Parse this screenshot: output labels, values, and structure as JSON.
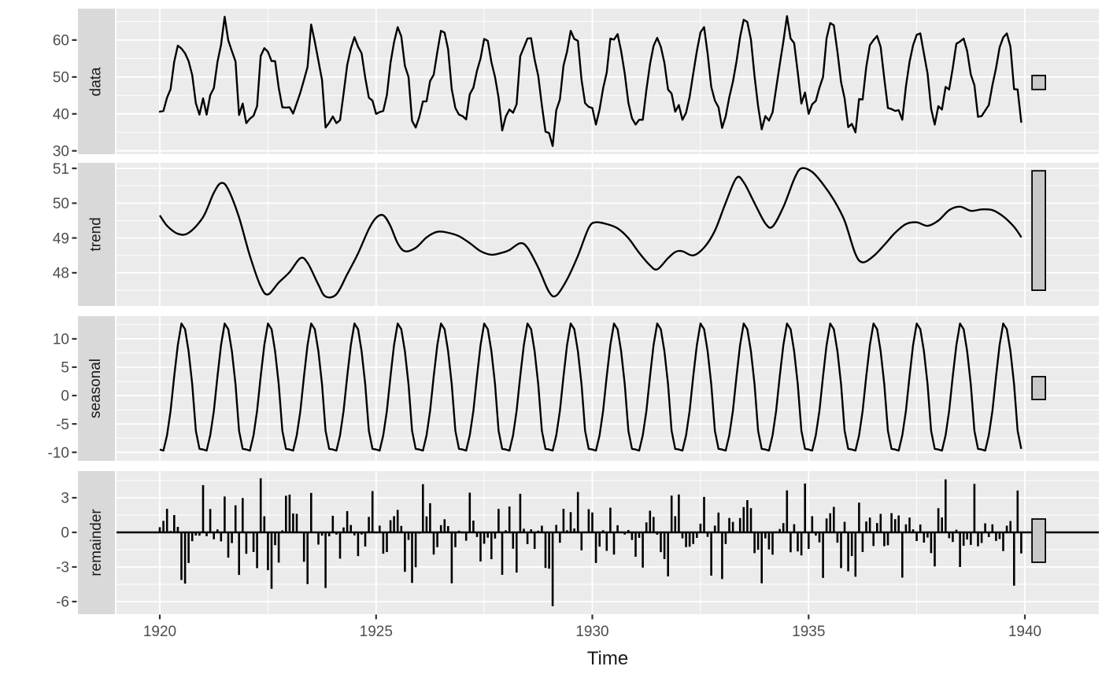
{
  "chart_data": {
    "type": "line",
    "description_visible": "Four-panel time-series decomposition plot",
    "xlabel": "Time",
    "x_axis": {
      "ticks": [
        1920,
        1925,
        1930,
        1935,
        1940
      ],
      "tick_labels": [
        "1920",
        "1925",
        "1930",
        "1935",
        "1940"
      ],
      "minor_ticks": [
        1922.5,
        1927.5,
        1932.5,
        1937.5
      ],
      "range_years": [
        1919.0,
        1941.72
      ]
    },
    "start_year": 1920,
    "frequency_per_year": 12,
    "panels": [
      {
        "label": "data",
        "yticks": [
          30,
          40,
          50,
          60
        ],
        "minor_yticks": [
          35,
          45,
          55,
          65
        ],
        "ylim": [
          29.1,
          68.5
        ]
      },
      {
        "label": "trend",
        "yticks": [
          48,
          49,
          50,
          51
        ],
        "minor_yticks": [
          47.5,
          48.5,
          49.5,
          50.5
        ],
        "ylim": [
          47.05,
          51.16
        ]
      },
      {
        "label": "seasonal",
        "yticks": [
          -10,
          -5,
          0,
          5,
          10
        ],
        "minor_yticks": [
          -7.5,
          -2.5,
          2.5,
          7.5,
          12.5
        ],
        "ylim": [
          -11.5,
          14.0
        ]
      },
      {
        "label": "remainder",
        "yticks": [
          -6,
          -3,
          0,
          3
        ],
        "minor_yticks": [
          -4.5,
          -1.5,
          1.5,
          4.5
        ],
        "ylim": [
          -7.09,
          5.32
        ]
      }
    ],
    "series": {
      "data_monthly": [
        40.6,
        40.8,
        44.4,
        46.7,
        54.1,
        58.5,
        57.7,
        56.4,
        54.3,
        50.5,
        42.9,
        39.8,
        44.2,
        39.8,
        45.1,
        47.0,
        54.1,
        58.7,
        66.3,
        59.9,
        57.0,
        54.2,
        39.7,
        42.8,
        37.5,
        38.7,
        39.5,
        42.1,
        55.7,
        57.8,
        56.8,
        54.3,
        54.3,
        47.1,
        41.8,
        41.7,
        41.8,
        40.1,
        42.9,
        45.8,
        49.2,
        52.7,
        64.2,
        59.6,
        54.4,
        49.2,
        36.3,
        37.6,
        39.3,
        37.5,
        38.3,
        45.5,
        53.2,
        57.7,
        60.8,
        58.2,
        56.4,
        49.8,
        44.4,
        43.6,
        40.0,
        40.5,
        40.8,
        45.1,
        53.8,
        59.4,
        63.5,
        61.0,
        53.0,
        50.0,
        38.1,
        36.3,
        39.2,
        43.4,
        43.4,
        48.9,
        50.6,
        56.8,
        62.5,
        62.0,
        57.5,
        46.7,
        41.6,
        39.8,
        39.4,
        38.5,
        45.3,
        47.1,
        51.7,
        55.0,
        60.3,
        59.8,
        54.0,
        50.0,
        44.4,
        35.5,
        39.3,
        41.2,
        40.3,
        42.6,
        55.6,
        58.0,
        60.4,
        60.5,
        54.7,
        50.3,
        42.3,
        35.2,
        34.8,
        31.3,
        41.0,
        43.9,
        53.1,
        56.9,
        62.5,
        60.3,
        59.8,
        49.2,
        42.9,
        41.9,
        41.6,
        37.1,
        41.2,
        46.9,
        51.2,
        60.4,
        60.1,
        61.6,
        57.0,
        50.9,
        43.0,
        38.8,
        37.1,
        38.4,
        38.4,
        46.5,
        53.5,
        58.4,
        60.6,
        58.2,
        53.8,
        46.6,
        45.5,
        40.6,
        42.4,
        38.4,
        40.3,
        44.6,
        50.9,
        57.0,
        62.1,
        63.5,
        56.3,
        47.3,
        43.6,
        41.8,
        36.2,
        39.3,
        44.5,
        48.7,
        54.2,
        60.8,
        65.5,
        64.9,
        60.1,
        50.2,
        42.1,
        35.8,
        39.4,
        38.2,
        40.4,
        46.9,
        53.4,
        59.6,
        66.5,
        60.4,
        59.2,
        51.2,
        42.8,
        45.8,
        40.0,
        42.6,
        43.5,
        47.1,
        50.0,
        60.5,
        64.6,
        64.0,
        56.8,
        48.6,
        44.2,
        36.4,
        37.3,
        35.0,
        44.0,
        43.9,
        52.7,
        58.6,
        60.0,
        61.1,
        58.1,
        49.6,
        41.6,
        41.3,
        40.8,
        41.0,
        38.4,
        47.4,
        54.1,
        58.6,
        61.4,
        61.8,
        56.3,
        50.9,
        41.4,
        37.1,
        42.1,
        41.2,
        47.3,
        46.6,
        52.4,
        59.0,
        59.6,
        60.4,
        57.0,
        50.7,
        47.8,
        39.2,
        39.4,
        40.9,
        42.4,
        47.8,
        52.4,
        58.0,
        60.7,
        61.8,
        58.2,
        46.7,
        46.6,
        37.8
      ],
      "seasonal_pattern_monthly": [
        -9.5,
        -9.7,
        -7.0,
        -2.7,
        3.4,
        8.9,
        12.7,
        11.7,
        7.8,
        2.0,
        -6.2,
        -9.4
      ],
      "trend_anchors": [
        [
          1920.0,
          49.65
        ],
        [
          1920.17,
          49.35
        ],
        [
          1920.42,
          49.12
        ],
        [
          1920.67,
          49.15
        ],
        [
          1921.0,
          49.6
        ],
        [
          1921.25,
          50.3
        ],
        [
          1921.42,
          50.58
        ],
        [
          1921.58,
          50.4
        ],
        [
          1921.83,
          49.6
        ],
        [
          1922.08,
          48.5
        ],
        [
          1922.33,
          47.62
        ],
        [
          1922.5,
          47.38
        ],
        [
          1922.75,
          47.72
        ],
        [
          1923.0,
          48.02
        ],
        [
          1923.25,
          48.42
        ],
        [
          1923.42,
          48.28
        ],
        [
          1923.67,
          47.65
        ],
        [
          1923.83,
          47.32
        ],
        [
          1924.08,
          47.38
        ],
        [
          1924.33,
          47.95
        ],
        [
          1924.58,
          48.55
        ],
        [
          1924.83,
          49.25
        ],
        [
          1925.0,
          49.58
        ],
        [
          1925.17,
          49.65
        ],
        [
          1925.33,
          49.35
        ],
        [
          1925.5,
          48.85
        ],
        [
          1925.67,
          48.62
        ],
        [
          1925.92,
          48.72
        ],
        [
          1926.17,
          49.02
        ],
        [
          1926.42,
          49.18
        ],
        [
          1926.67,
          49.15
        ],
        [
          1926.92,
          49.05
        ],
        [
          1927.17,
          48.85
        ],
        [
          1927.42,
          48.62
        ],
        [
          1927.67,
          48.52
        ],
        [
          1927.92,
          48.58
        ],
        [
          1928.08,
          48.65
        ],
        [
          1928.33,
          48.85
        ],
        [
          1928.5,
          48.72
        ],
        [
          1928.75,
          48.15
        ],
        [
          1929.0,
          47.45
        ],
        [
          1929.17,
          47.35
        ],
        [
          1929.42,
          47.82
        ],
        [
          1929.67,
          48.5
        ],
        [
          1929.92,
          49.3
        ],
        [
          1930.08,
          49.45
        ],
        [
          1930.33,
          49.4
        ],
        [
          1930.58,
          49.28
        ],
        [
          1930.83,
          49.0
        ],
        [
          1931.08,
          48.58
        ],
        [
          1931.33,
          48.22
        ],
        [
          1931.5,
          48.1
        ],
        [
          1931.75,
          48.42
        ],
        [
          1931.92,
          48.6
        ],
        [
          1932.08,
          48.62
        ],
        [
          1932.33,
          48.5
        ],
        [
          1932.58,
          48.72
        ],
        [
          1932.83,
          49.2
        ],
        [
          1933.08,
          50.0
        ],
        [
          1933.33,
          50.72
        ],
        [
          1933.5,
          50.6
        ],
        [
          1933.75,
          50.0
        ],
        [
          1934.0,
          49.42
        ],
        [
          1934.17,
          49.33
        ],
        [
          1934.42,
          49.9
        ],
        [
          1934.67,
          50.7
        ],
        [
          1934.83,
          51.0
        ],
        [
          1935.08,
          50.9
        ],
        [
          1935.33,
          50.55
        ],
        [
          1935.58,
          50.1
        ],
        [
          1935.83,
          49.5
        ],
        [
          1936.08,
          48.55
        ],
        [
          1936.25,
          48.3
        ],
        [
          1936.5,
          48.48
        ],
        [
          1936.75,
          48.8
        ],
        [
          1937.0,
          49.15
        ],
        [
          1937.25,
          49.4
        ],
        [
          1937.5,
          49.45
        ],
        [
          1937.75,
          49.35
        ],
        [
          1938.0,
          49.5
        ],
        [
          1938.25,
          49.8
        ],
        [
          1938.5,
          49.9
        ],
        [
          1938.75,
          49.78
        ],
        [
          1939.0,
          49.82
        ],
        [
          1939.25,
          49.8
        ],
        [
          1939.5,
          49.62
        ],
        [
          1939.75,
          49.32
        ],
        [
          1939.92,
          49.02
        ]
      ]
    },
    "scale_bars": {
      "x_center_year": 1940.32,
      "value_ranges": [
        [
          50.4,
          46.6
        ],
        [
          50.93,
          47.5
        ],
        [
          3.33,
          -0.69
        ],
        [
          1.16,
          -2.59
        ]
      ]
    },
    "colors": {
      "background": "#FFFFFF",
      "panel_background": "#EBEBEB",
      "strip_background": "#D9D9D9",
      "gridline_major": "#FFFFFF",
      "gridline_minor": "#FFFFFF",
      "series_line": "#000000",
      "axis_text": "#4D4D4D",
      "strip_text": "#1A1A1A",
      "axis_title": "#1A1A1A",
      "tick_mark": "#333333",
      "scale_bar_fill": "#C8C8C8",
      "scale_bar_stroke": "#000000"
    }
  }
}
